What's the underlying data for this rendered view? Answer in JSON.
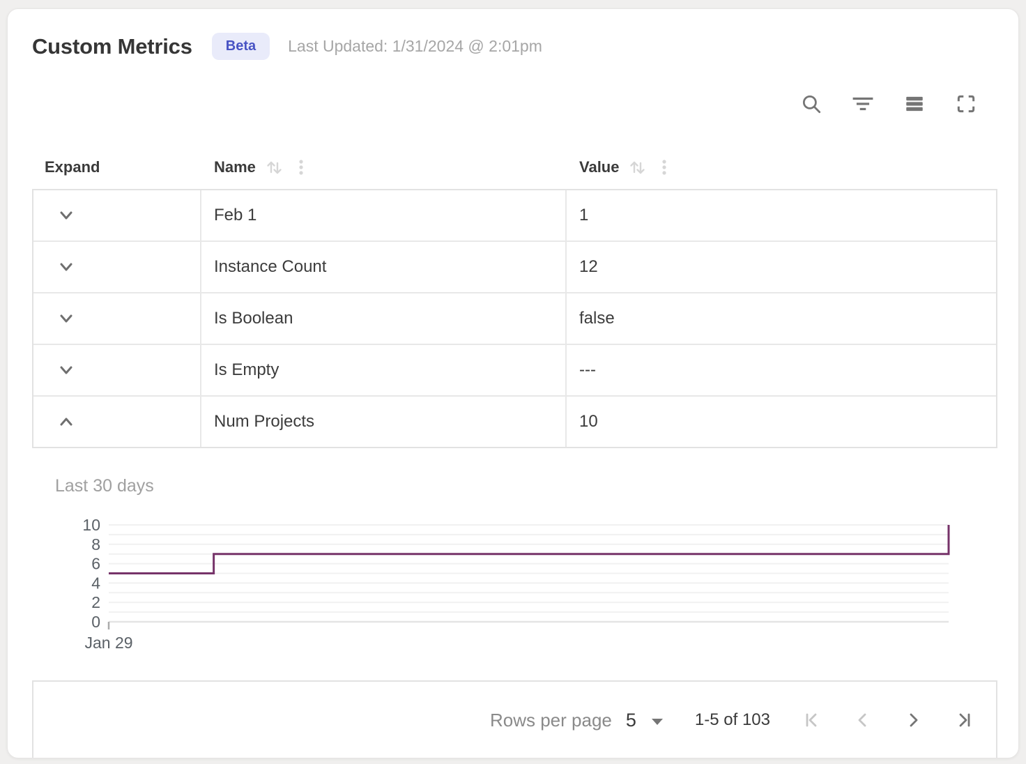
{
  "header": {
    "title": "Custom Metrics",
    "badge": "Beta",
    "last_updated": "Last Updated: 1/31/2024 @ 2:01pm"
  },
  "toolbar": {
    "icons": [
      "search",
      "filter",
      "density",
      "fullscreen"
    ]
  },
  "table": {
    "columns": [
      {
        "label": "Expand",
        "sortable": false
      },
      {
        "label": "Name",
        "sortable": true
      },
      {
        "label": "Value",
        "sortable": true
      }
    ],
    "rows": [
      {
        "name": "Feb 1",
        "value": "1",
        "expanded": false
      },
      {
        "name": "Instance Count",
        "value": "12",
        "expanded": false
      },
      {
        "name": "Is Boolean",
        "value": "false",
        "expanded": false
      },
      {
        "name": "Is Empty",
        "value": "---",
        "expanded": false
      },
      {
        "name": "Num Projects",
        "value": "10",
        "expanded": true
      }
    ]
  },
  "detail_panel": {
    "label": "Last 30 days"
  },
  "chart_data": {
    "type": "line",
    "subtype": "step",
    "title": "Last 30 days",
    "x_tick_labels": [
      "Jan 29"
    ],
    "ylim": [
      0,
      10
    ],
    "yticks": [
      0,
      2,
      4,
      6,
      8,
      10
    ],
    "grid": "horizontal-every-unit",
    "legend": "none",
    "line_color": "#763369",
    "points_pct": [
      {
        "x": 0,
        "y": 5
      },
      {
        "x": 12.5,
        "y": 5
      },
      {
        "x": 12.5,
        "y": 7
      },
      {
        "x": 100,
        "y": 7
      },
      {
        "x": 100,
        "y": 10
      }
    ]
  },
  "footer": {
    "rows_per_page_label": "Rows per page",
    "rows_per_page_value": "5",
    "range_label": "1-5 of 103",
    "pagination": [
      {
        "name": "first-page",
        "disabled": true
      },
      {
        "name": "previous-page",
        "disabled": true
      },
      {
        "name": "next-page",
        "disabled": false
      },
      {
        "name": "last-page",
        "disabled": false
      }
    ]
  },
  "colors": {
    "chart_line": "#763369",
    "badge_bg": "#e9ebfa",
    "badge_text": "#4853c4",
    "icon_enabled": "#757575",
    "icon_disabled": "#c6c6c6",
    "sort_icon": "#d6d6d6",
    "border": "#e2e2e2",
    "gridline": "#f1f1f1"
  }
}
